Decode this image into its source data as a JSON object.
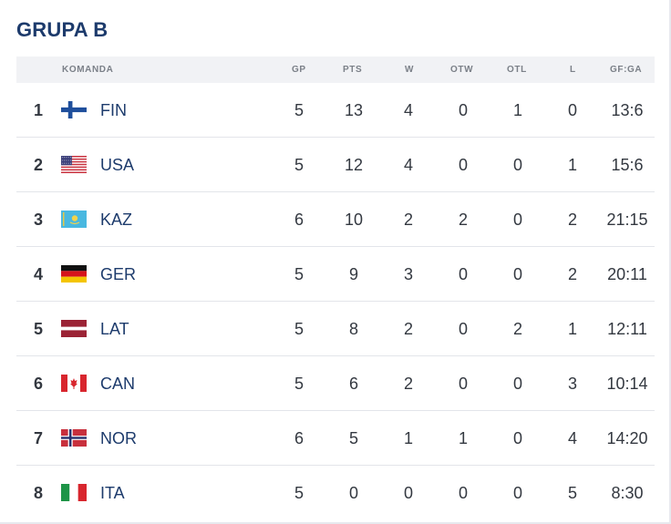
{
  "group_title": "GRUPA B",
  "columns": {
    "team": "KOMANDA",
    "gp": "GP",
    "pts": "PTS",
    "w": "W",
    "otw": "OTW",
    "otl": "OTL",
    "l": "L",
    "gfga": "GF:GA"
  },
  "rows": [
    {
      "rank": "1",
      "team": "FIN",
      "flag": "finland-flag-icon",
      "gp": "5",
      "pts": "13",
      "w": "4",
      "otw": "0",
      "otl": "1",
      "l": "0",
      "gfga": "13:6"
    },
    {
      "rank": "2",
      "team": "USA",
      "flag": "usa-flag-icon",
      "gp": "5",
      "pts": "12",
      "w": "4",
      "otw": "0",
      "otl": "0",
      "l": "1",
      "gfga": "15:6"
    },
    {
      "rank": "3",
      "team": "KAZ",
      "flag": "kazakhstan-flag-icon",
      "gp": "6",
      "pts": "10",
      "w": "2",
      "otw": "2",
      "otl": "0",
      "l": "2",
      "gfga": "21:15"
    },
    {
      "rank": "4",
      "team": "GER",
      "flag": "germany-flag-icon",
      "gp": "5",
      "pts": "9",
      "w": "3",
      "otw": "0",
      "otl": "0",
      "l": "2",
      "gfga": "20:11"
    },
    {
      "rank": "5",
      "team": "LAT",
      "flag": "latvia-flag-icon",
      "gp": "5",
      "pts": "8",
      "w": "2",
      "otw": "0",
      "otl": "2",
      "l": "1",
      "gfga": "12:11"
    },
    {
      "rank": "6",
      "team": "CAN",
      "flag": "canada-flag-icon",
      "gp": "5",
      "pts": "6",
      "w": "2",
      "otw": "0",
      "otl": "0",
      "l": "3",
      "gfga": "10:14"
    },
    {
      "rank": "7",
      "team": "NOR",
      "flag": "norway-flag-icon",
      "gp": "6",
      "pts": "5",
      "w": "1",
      "otw": "1",
      "otl": "0",
      "l": "4",
      "gfga": "14:20"
    },
    {
      "rank": "8",
      "team": "ITA",
      "flag": "italy-flag-icon",
      "gp": "5",
      "pts": "0",
      "w": "0",
      "otw": "0",
      "otl": "0",
      "l": "5",
      "gfga": "8:30"
    }
  ],
  "colors": {
    "title": "#1d3b6c",
    "header_bg": "#f1f2f5",
    "team_text": "#1d3b6c"
  }
}
